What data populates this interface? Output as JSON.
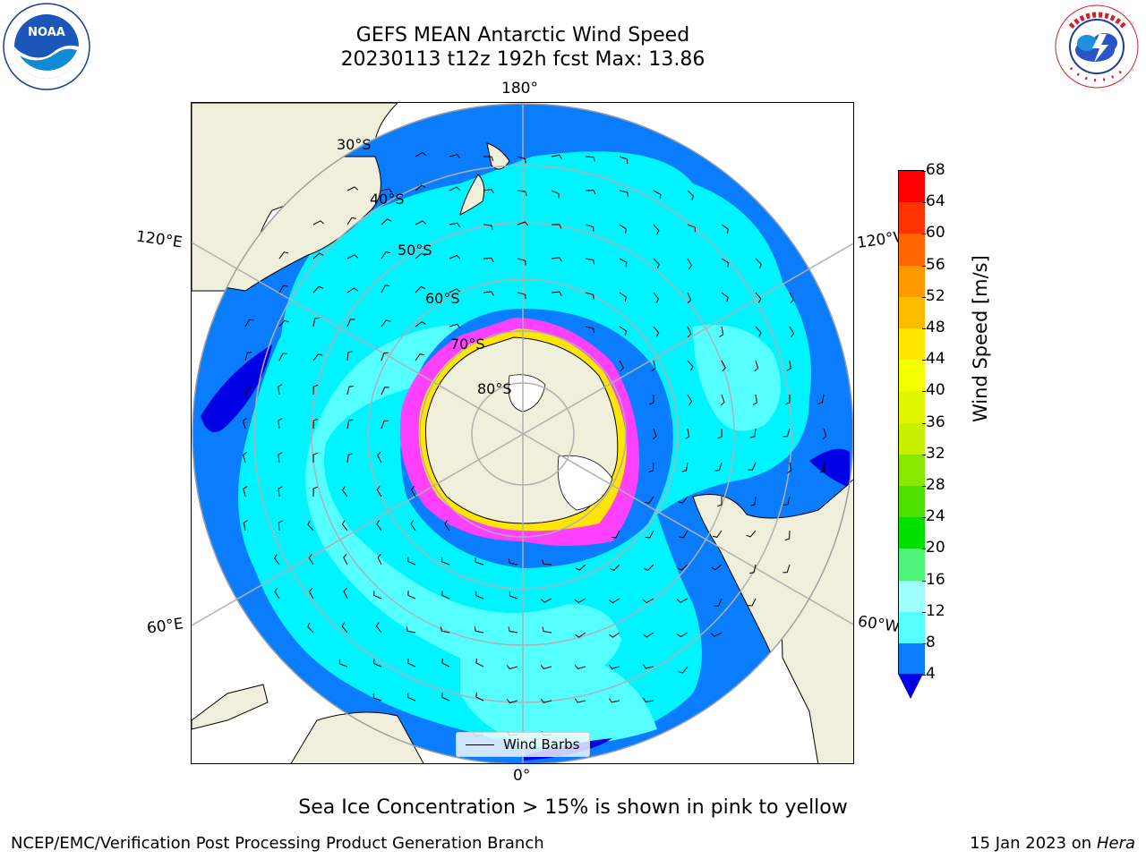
{
  "header": {
    "title_line1": "GEFS MEAN Antarctic Wind Speed",
    "title_line2": "20230113 t12z 192h fcst   Max: 13.86"
  },
  "map": {
    "projection": "south-polar-stereographic",
    "lon_labels": {
      "top": "180°",
      "bottom": "0°",
      "upper_left": "120°E",
      "upper_right": "120°W",
      "lower_left": "60°E",
      "lower_right": "60°W"
    },
    "lat_labels": [
      "30°S",
      "40°S",
      "50°S",
      "60°S",
      "70°S",
      "80°S"
    ],
    "legend_label": "Wind Barbs",
    "colors": {
      "land": "#efefdc",
      "band_4_8": "#0a7dff",
      "band_8_12": "#00f4ff",
      "band_12_16": "#55ffff",
      "band_16_20": "#a0ffff",
      "below_4": "#0000e5",
      "sea_ice": "#ff40ff"
    }
  },
  "colorbar": {
    "label": "Wind Speed [m/s]",
    "ticks": [
      "68",
      "64",
      "60",
      "56",
      "52",
      "48",
      "44",
      "40",
      "36",
      "32",
      "28",
      "24",
      "20",
      "16",
      "12",
      "8",
      "4"
    ],
    "colors": [
      "#ff0000",
      "#ff3300",
      "#ff6600",
      "#ff9900",
      "#ffbb00",
      "#ffe600",
      "#f4ff00",
      "#e0f500",
      "#c8ef00",
      "#8ae800",
      "#4ee000",
      "#00e000",
      "#4ff37a",
      "#a0ffff",
      "#55ffff",
      "#00f4ff",
      "#0a7dff"
    ],
    "extend_color": "#0000e5"
  },
  "caption": "Sea Ice Concentration > 15% is shown in pink to yellow",
  "footer": {
    "left": "NCEP/EMC/Verification Post Processing Product Generation Branch",
    "right_prefix": "15 Jan 2023 on ",
    "right_host": "Hera"
  },
  "logos": {
    "noaa_text": "NOAA",
    "nws_text": "NATIONAL WEATHER SERVICE"
  }
}
